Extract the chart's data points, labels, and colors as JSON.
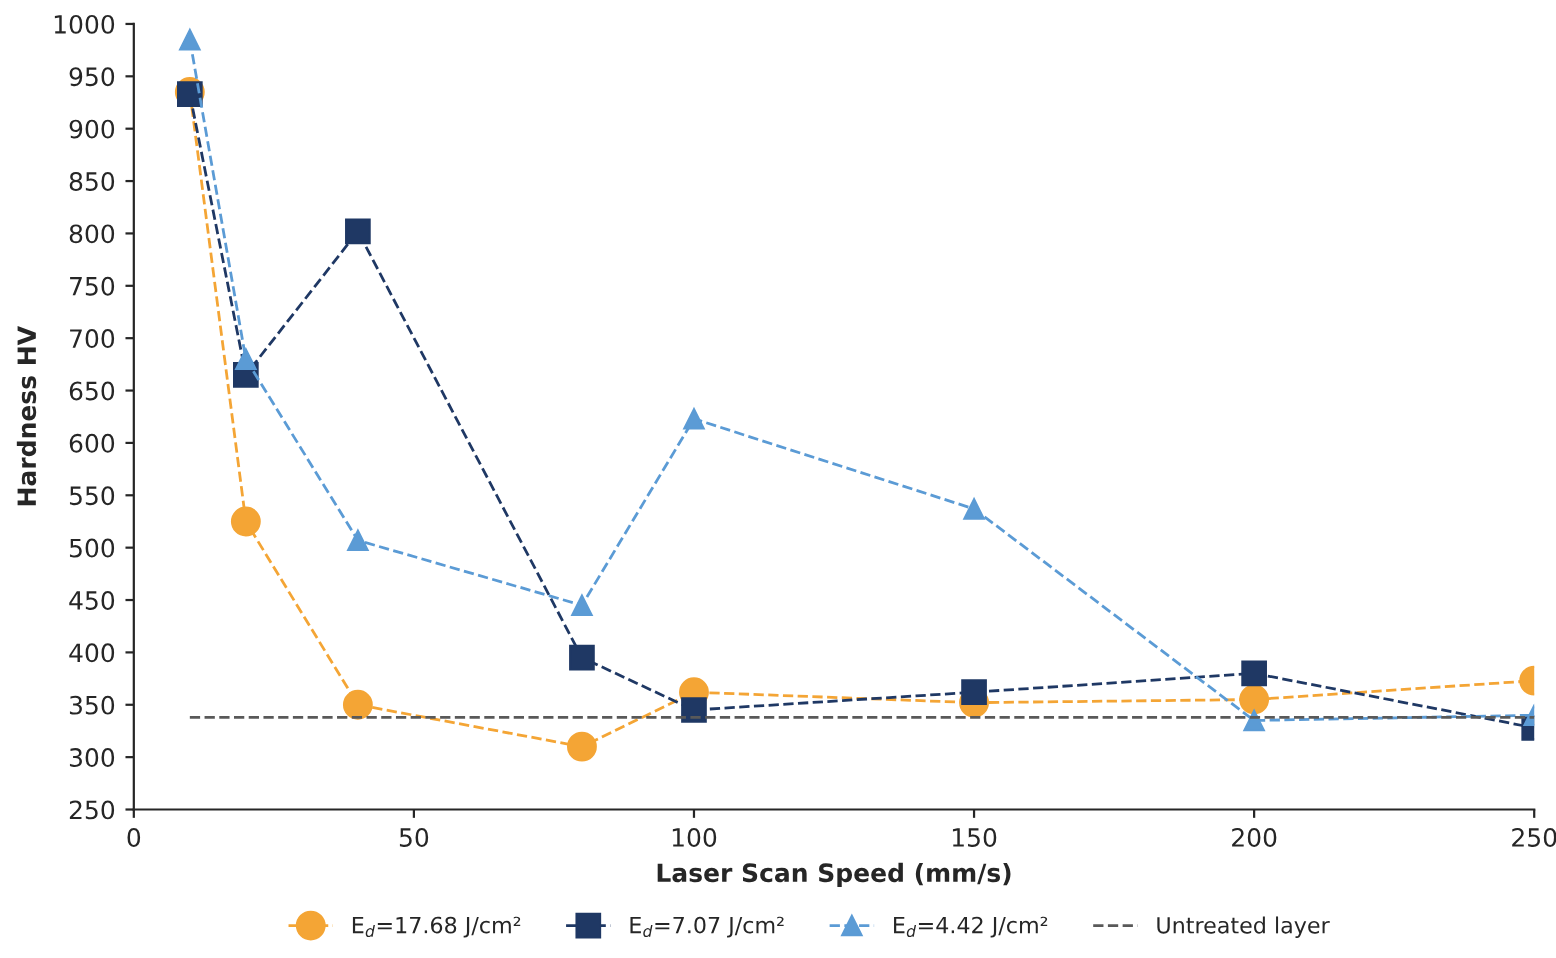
{
  "chart_data": {
    "type": "line",
    "xlabel": "Laser Scan Speed (mm/s)",
    "ylabel": "Hardness HV",
    "xlim": [
      0,
      250
    ],
    "xticks": [
      0,
      50,
      100,
      150,
      200,
      250
    ],
    "ylim": [
      250,
      1000
    ],
    "yticks": [
      250,
      300,
      350,
      400,
      450,
      500,
      550,
      600,
      650,
      700,
      750,
      800,
      850,
      900,
      950,
      1000
    ],
    "grid": false,
    "legend": "bottom",
    "line_style": "dashed",
    "series": [
      {
        "name": "E$_{d}$=17.68 J/cm²",
        "color": "#f4a535",
        "marker": "circle",
        "x": [
          10,
          20,
          40,
          80,
          100,
          150,
          200,
          250
        ],
        "values": [
          935,
          525,
          350,
          310,
          362,
          352,
          355,
          373
        ]
      },
      {
        "name": "E$_{d}$=7.07 J/cm²",
        "color": "#1f3864",
        "marker": "square",
        "x": [
          10,
          20,
          40,
          80,
          100,
          150,
          200,
          250
        ],
        "values": [
          933,
          665,
          802,
          395,
          345,
          362,
          380,
          328
        ]
      },
      {
        "name": "E$_{d}$=4.42 J/cm²",
        "color": "#5b9bd5",
        "marker": "triangle",
        "x": [
          10,
          20,
          40,
          80,
          100,
          150,
          200,
          250
        ],
        "values": [
          985,
          680,
          507,
          445,
          623,
          537,
          335,
          340
        ]
      },
      {
        "name": "Untreated layer",
        "color": "#595959",
        "marker": "none",
        "x": [
          10,
          250
        ],
        "values": [
          338,
          338
        ]
      }
    ]
  }
}
